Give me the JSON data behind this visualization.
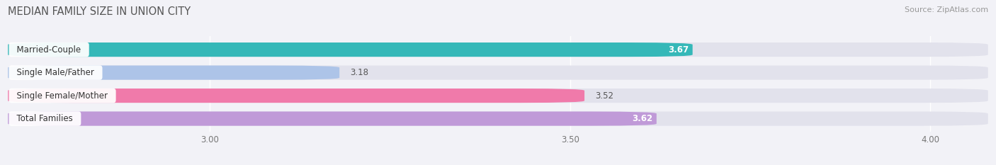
{
  "title": "MEDIAN FAMILY SIZE IN UNION CITY",
  "source": "Source: ZipAtlas.com",
  "categories": [
    "Married-Couple",
    "Single Male/Father",
    "Single Female/Mother",
    "Total Families"
  ],
  "values": [
    3.67,
    3.18,
    3.52,
    3.62
  ],
  "bar_colors": [
    "#35b8b8",
    "#adc4e8",
    "#f07aaa",
    "#c09ad8"
  ],
  "xlim_data": [
    2.72,
    4.08
  ],
  "xaxis_min": 2.72,
  "xticks": [
    3.0,
    3.5,
    4.0
  ],
  "xtick_labels": [
    "3.00",
    "3.50",
    "4.00"
  ],
  "bar_height": 0.62,
  "background_color": "#f2f2f7",
  "bar_bg_color": "#e2e2ec",
  "title_fontsize": 10.5,
  "source_fontsize": 8,
  "label_fontsize": 8.5,
  "value_fontsize": 8.5,
  "value_colors": [
    "white",
    "#555555",
    "#555555",
    "white"
  ],
  "value_bold": [
    true,
    false,
    false,
    true
  ]
}
